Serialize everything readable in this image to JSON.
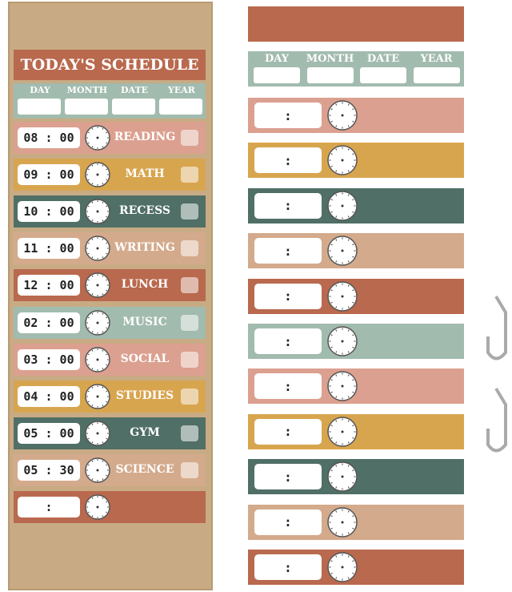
{
  "schedule_chart": {
    "title": "TODAY'S SCHEDULE",
    "date_fields": [
      "DAY",
      "MONTH",
      "DATE",
      "YEAR"
    ],
    "rows": [
      {
        "time": "08 : 00",
        "subject": "READING"
      },
      {
        "time": "09 : 00",
        "subject": "MATH"
      },
      {
        "time": "10 : 00",
        "subject": "RECESS"
      },
      {
        "time": "11 : 00",
        "subject": "WRITING"
      },
      {
        "time": "12 : 00",
        "subject": "LUNCH"
      },
      {
        "time": "02 : 00",
        "subject": "MUSIC"
      },
      {
        "time": "03 : 00",
        "subject": "SOCIAL"
      },
      {
        "time": "04 : 00",
        "subject": "STUDIES"
      },
      {
        "time": "05 : 00",
        "subject": "GYM"
      },
      {
        "time": "05 : 30",
        "subject": "SCIENCE"
      },
      {
        "time": ":"
      }
    ]
  },
  "spare_cards": {
    "date_fields": [
      "DAY",
      "MONTH",
      "DATE",
      "YEAR"
    ],
    "blank_time": ":"
  }
}
